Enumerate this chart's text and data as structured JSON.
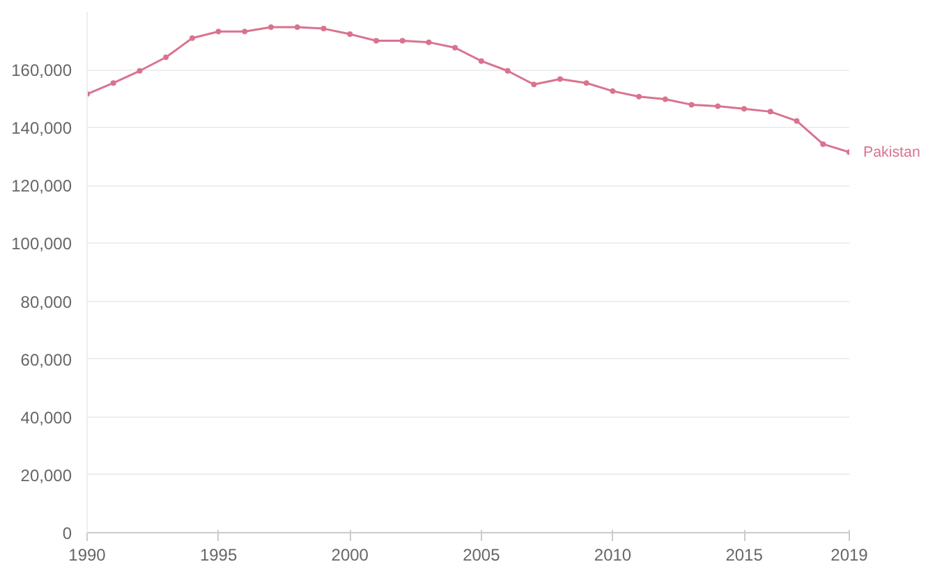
{
  "chart_data": {
    "type": "line",
    "x": [
      1990,
      1991,
      1992,
      1993,
      1994,
      1995,
      1996,
      1997,
      1998,
      1999,
      2000,
      2001,
      2002,
      2003,
      2004,
      2005,
      2006,
      2007,
      2008,
      2009,
      2010,
      2011,
      2012,
      2013,
      2014,
      2015,
      2016,
      2017,
      2018,
      2019
    ],
    "series": [
      {
        "name": "Pakistan",
        "color": "#d9738f",
        "values": [
          151600,
          155400,
          159600,
          164300,
          170900,
          173200,
          173200,
          174700,
          174700,
          174200,
          172300,
          170000,
          170000,
          169500,
          167600,
          163000,
          159600,
          154900,
          156800,
          155400,
          152600,
          150700,
          149800,
          147900,
          147400,
          146500,
          145500,
          142300,
          134300,
          131500
        ]
      }
    ],
    "xlim": [
      1990,
      2019
    ],
    "xticks": [
      1990,
      1995,
      2000,
      2005,
      2010,
      2015,
      2019
    ],
    "ylim": [
      0,
      180000
    ],
    "yticks": [
      0,
      {
        "value": 20000,
        "label": "20,000"
      },
      {
        "value": 40000,
        "label": "40,000"
      },
      {
        "value": 60000,
        "label": "60,000"
      },
      {
        "value": 80000,
        "label": "80,000"
      },
      {
        "value": 100000,
        "label": "100,000"
      },
      {
        "value": 120000,
        "label": "120,000"
      },
      {
        "value": 140000,
        "label": "140,000"
      },
      {
        "value": 160000,
        "label": "160,000"
      }
    ],
    "grid": "y",
    "marker": "circle",
    "line_style": "solid",
    "legend": false
  }
}
